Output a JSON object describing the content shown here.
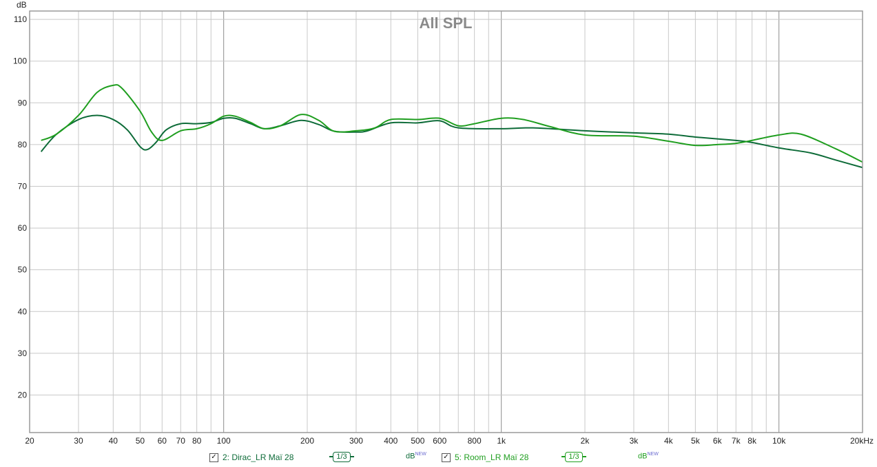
{
  "chart_data": {
    "type": "line",
    "title": "All SPL",
    "ylabel": "dB",
    "xlabel": "",
    "x_scale": "log",
    "xlim": [
      20,
      20000
    ],
    "ylim": [
      11,
      112
    ],
    "y_ticks": [
      20,
      30,
      40,
      50,
      60,
      70,
      80,
      90,
      100,
      110
    ],
    "x_ticks": [
      {
        "v": 20,
        "label": "20"
      },
      {
        "v": 30,
        "label": "30"
      },
      {
        "v": 40,
        "label": "40"
      },
      {
        "v": 50,
        "label": "50"
      },
      {
        "v": 60,
        "label": "60"
      },
      {
        "v": 70,
        "label": "70"
      },
      {
        "v": 80,
        "label": "80"
      },
      {
        "v": 100,
        "label": "100"
      },
      {
        "v": 200,
        "label": "200"
      },
      {
        "v": 300,
        "label": "300"
      },
      {
        "v": 400,
        "label": "400"
      },
      {
        "v": 500,
        "label": "500"
      },
      {
        "v": 600,
        "label": "600"
      },
      {
        "v": 800,
        "label": "800"
      },
      {
        "v": 1000,
        "label": "1k"
      },
      {
        "v": 2000,
        "label": "2k"
      },
      {
        "v": 3000,
        "label": "3k"
      },
      {
        "v": 4000,
        "label": "4k"
      },
      {
        "v": 5000,
        "label": "5k"
      },
      {
        "v": 6000,
        "label": "6k"
      },
      {
        "v": 7000,
        "label": "7k"
      },
      {
        "v": 8000,
        "label": "8k"
      },
      {
        "v": 10000,
        "label": "10k"
      },
      {
        "v": 20000,
        "label": "20kHz"
      }
    ],
    "grid": true,
    "series": [
      {
        "name": "2: Dirac_LR Maï 28",
        "color": "#0d6b38",
        "points": [
          [
            22,
            78.3
          ],
          [
            25,
            82.5
          ],
          [
            30,
            86.0
          ],
          [
            35,
            87.0
          ],
          [
            40,
            86.0
          ],
          [
            45,
            83.5
          ],
          [
            50,
            79.5
          ],
          [
            53,
            78.8
          ],
          [
            57,
            80.5
          ],
          [
            62,
            83.5
          ],
          [
            70,
            85.0
          ],
          [
            80,
            85.0
          ],
          [
            90,
            85.3
          ],
          [
            100,
            86.3
          ],
          [
            110,
            86.3
          ],
          [
            125,
            85.0
          ],
          [
            140,
            83.8
          ],
          [
            160,
            84.5
          ],
          [
            190,
            85.8
          ],
          [
            220,
            84.8
          ],
          [
            250,
            83.2
          ],
          [
            300,
            83.0
          ],
          [
            330,
            83.3
          ],
          [
            400,
            85.2
          ],
          [
            500,
            85.2
          ],
          [
            600,
            85.7
          ],
          [
            700,
            84.0
          ],
          [
            1000,
            83.8
          ],
          [
            1300,
            84.0
          ],
          [
            2000,
            83.3
          ],
          [
            3000,
            82.8
          ],
          [
            4000,
            82.5
          ],
          [
            5000,
            81.8
          ],
          [
            7000,
            81.0
          ],
          [
            8000,
            80.5
          ],
          [
            10000,
            79.2
          ],
          [
            13000,
            78.0
          ],
          [
            16000,
            76.3
          ],
          [
            20000,
            74.5
          ]
        ]
      },
      {
        "name": "5: Room_LR Maï 28",
        "color": "#1f9e1f",
        "points": [
          [
            22,
            81.0
          ],
          [
            25,
            82.5
          ],
          [
            30,
            87.0
          ],
          [
            35,
            92.5
          ],
          [
            40,
            94.2
          ],
          [
            43,
            93.5
          ],
          [
            50,
            88.0
          ],
          [
            55,
            83.0
          ],
          [
            60,
            81.0
          ],
          [
            70,
            83.3
          ],
          [
            80,
            83.8
          ],
          [
            90,
            85.0
          ],
          [
            100,
            86.8
          ],
          [
            110,
            86.8
          ],
          [
            125,
            85.3
          ],
          [
            140,
            83.8
          ],
          [
            160,
            84.5
          ],
          [
            190,
            87.2
          ],
          [
            220,
            85.8
          ],
          [
            250,
            83.2
          ],
          [
            300,
            83.3
          ],
          [
            350,
            84.0
          ],
          [
            400,
            86.0
          ],
          [
            500,
            86.0
          ],
          [
            600,
            86.3
          ],
          [
            700,
            84.5
          ],
          [
            800,
            85.0
          ],
          [
            1000,
            86.3
          ],
          [
            1200,
            86.0
          ],
          [
            1500,
            84.3
          ],
          [
            2000,
            82.3
          ],
          [
            3000,
            82.0
          ],
          [
            4000,
            80.8
          ],
          [
            5000,
            79.8
          ],
          [
            6000,
            80.0
          ],
          [
            7000,
            80.3
          ],
          [
            8000,
            81.0
          ],
          [
            10000,
            82.3
          ],
          [
            12000,
            82.5
          ],
          [
            16000,
            79.0
          ],
          [
            20000,
            75.8
          ]
        ]
      }
    ]
  },
  "legend": {
    "items": [
      {
        "label": "2: Dirac_LR Maï 28",
        "smoothing": "1/3",
        "unit": "dB",
        "unit_sup": "NEW",
        "color": "#0d6b38",
        "checked": "✓"
      },
      {
        "label": "5: Room_LR Maï 28",
        "smoothing": "1/3",
        "unit": "dB",
        "unit_sup": "NEW",
        "color": "#1f9e1f",
        "checked": "✓"
      }
    ]
  }
}
